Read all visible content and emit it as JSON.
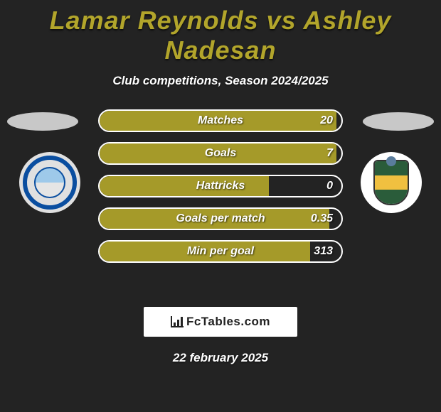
{
  "title_color": "#b2a52b",
  "title": "Lamar Reynolds vs Ashley Nadesan",
  "subtitle": "Club competitions, Season 2024/2025",
  "bar_fill_color": "#a59a29",
  "bars": [
    {
      "label": "Matches",
      "value": "20",
      "fill_pct": 98
    },
    {
      "label": "Goals",
      "value": "7",
      "fill_pct": 98
    },
    {
      "label": "Hattricks",
      "value": "0",
      "fill_pct": 70
    },
    {
      "label": "Goals per match",
      "value": "0.35",
      "fill_pct": 95
    },
    {
      "label": "Min per goal",
      "value": "313",
      "fill_pct": 87
    }
  ],
  "brand": "FcTables.com",
  "date": "22 february 2025"
}
